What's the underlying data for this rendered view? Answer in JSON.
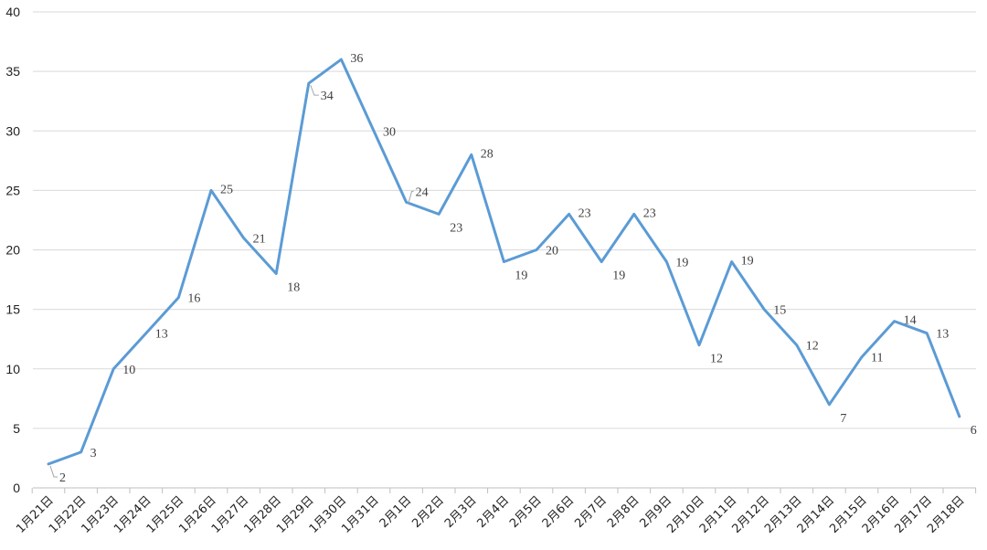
{
  "chart_data": {
    "type": "line",
    "title": "",
    "xlabel": "",
    "ylabel": "",
    "ylim": [
      0,
      40
    ],
    "yticks": [
      0,
      5,
      10,
      15,
      20,
      25,
      30,
      35,
      40
    ],
    "grid": true,
    "legend": "none",
    "categories": [
      "1月21日",
      "1月22日",
      "1月23日",
      "1月24日",
      "1月25日",
      "1月26日",
      "1月27日",
      "1月28日",
      "1月29日",
      "1月30日",
      "1月31日",
      "2月1日",
      "2月2日",
      "2月3日",
      "2月4日",
      "2月5日",
      "2月6日",
      "2月7日",
      "2月8日",
      "2月9日",
      "2月10日",
      "2月11日",
      "2月12日",
      "2月13日",
      "2月14日",
      "2月15日",
      "2月16日",
      "2月17日",
      "2月18日"
    ],
    "series": [
      {
        "color": "#5b9bd5",
        "values": [
          2,
          3,
          10,
          13,
          16,
          25,
          21,
          18,
          34,
          36,
          30,
          24,
          23,
          28,
          19,
          20,
          23,
          19,
          23,
          19,
          12,
          19,
          15,
          12,
          7,
          11,
          14,
          13,
          6
        ],
        "labels": [
          "2",
          "3",
          "10",
          "13",
          "16",
          "25",
          "21",
          "18",
          "34",
          "36",
          "30",
          "24",
          "23",
          "28",
          "19",
          "20",
          "23",
          "19",
          "23",
          "19",
          "12",
          "19",
          "15",
          "12",
          "7",
          "11",
          "14",
          "13",
          "6"
        ]
      }
    ]
  }
}
